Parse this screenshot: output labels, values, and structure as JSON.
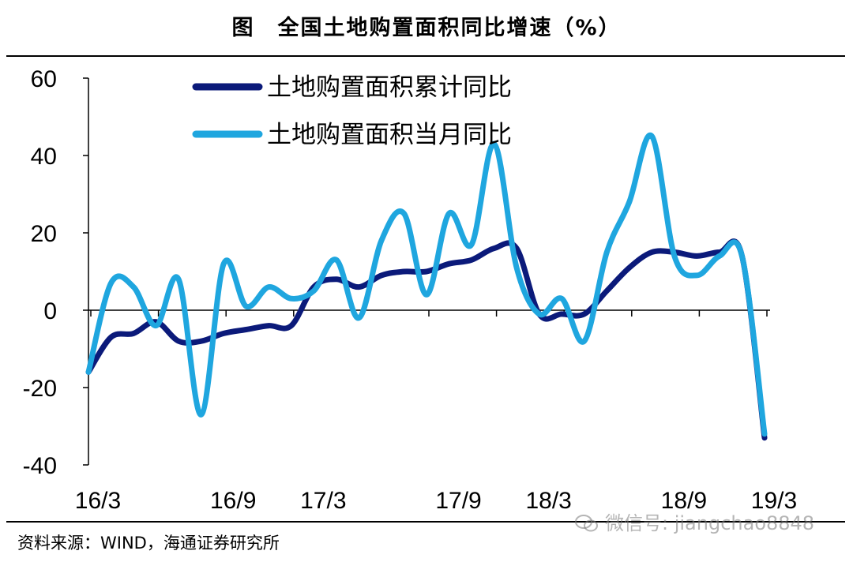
{
  "title": "图　全国土地购置面积同比增速（%）",
  "source": "资料来源：WIND，海通证券研究所",
  "watermark": "微信号: jiangchao8848",
  "chart_data": {
    "type": "line",
    "title": "图　全国土地购置面积同比增速（%）",
    "xlabel": "",
    "ylabel": "",
    "ylim": [
      -40,
      60
    ],
    "yticks": [
      -40,
      -20,
      0,
      20,
      40,
      60
    ],
    "ytick_labels": [
      "-40",
      "-20",
      "0",
      "20",
      "40",
      "60"
    ],
    "categories": [
      "16/3",
      "16/4",
      "16/5",
      "16/6",
      "16/7",
      "16/8",
      "16/9",
      "16/10",
      "16/11",
      "16/12",
      "17/3",
      "17/4",
      "17/5",
      "17/6",
      "17/7",
      "17/8",
      "17/9",
      "17/10",
      "17/11",
      "17/12",
      "18/3",
      "18/4",
      "18/5",
      "18/6",
      "18/7",
      "18/8",
      "18/9",
      "18/10",
      "18/11",
      "18/12",
      "19/3"
    ],
    "xtick_labels": [
      "16/3",
      "16/9",
      "17/3",
      "17/9",
      "18/3",
      "18/9",
      "19/3"
    ],
    "grid": false,
    "legend_position": "top-left",
    "series": [
      {
        "name": "土地购置面积累计同比",
        "color": "#0b1a7a",
        "values": [
          -16,
          -7,
          -6,
          -3,
          -8,
          -8,
          -6,
          -5,
          -4,
          -4,
          6,
          8,
          6,
          9,
          10,
          10,
          12,
          13,
          16,
          16,
          -1,
          -1,
          -1,
          5,
          11,
          15,
          15,
          14,
          15,
          14,
          -33
        ]
      },
      {
        "name": "土地购置面积当月同比",
        "color": "#1fa6df",
        "values": [
          -16,
          7,
          6,
          -4,
          8,
          -27,
          12,
          1,
          6,
          3,
          5,
          13,
          -2,
          18,
          25,
          4,
          25,
          17,
          43,
          11,
          -1,
          3,
          -8,
          15,
          28,
          45,
          14,
          9,
          14,
          14,
          -32
        ]
      }
    ]
  }
}
